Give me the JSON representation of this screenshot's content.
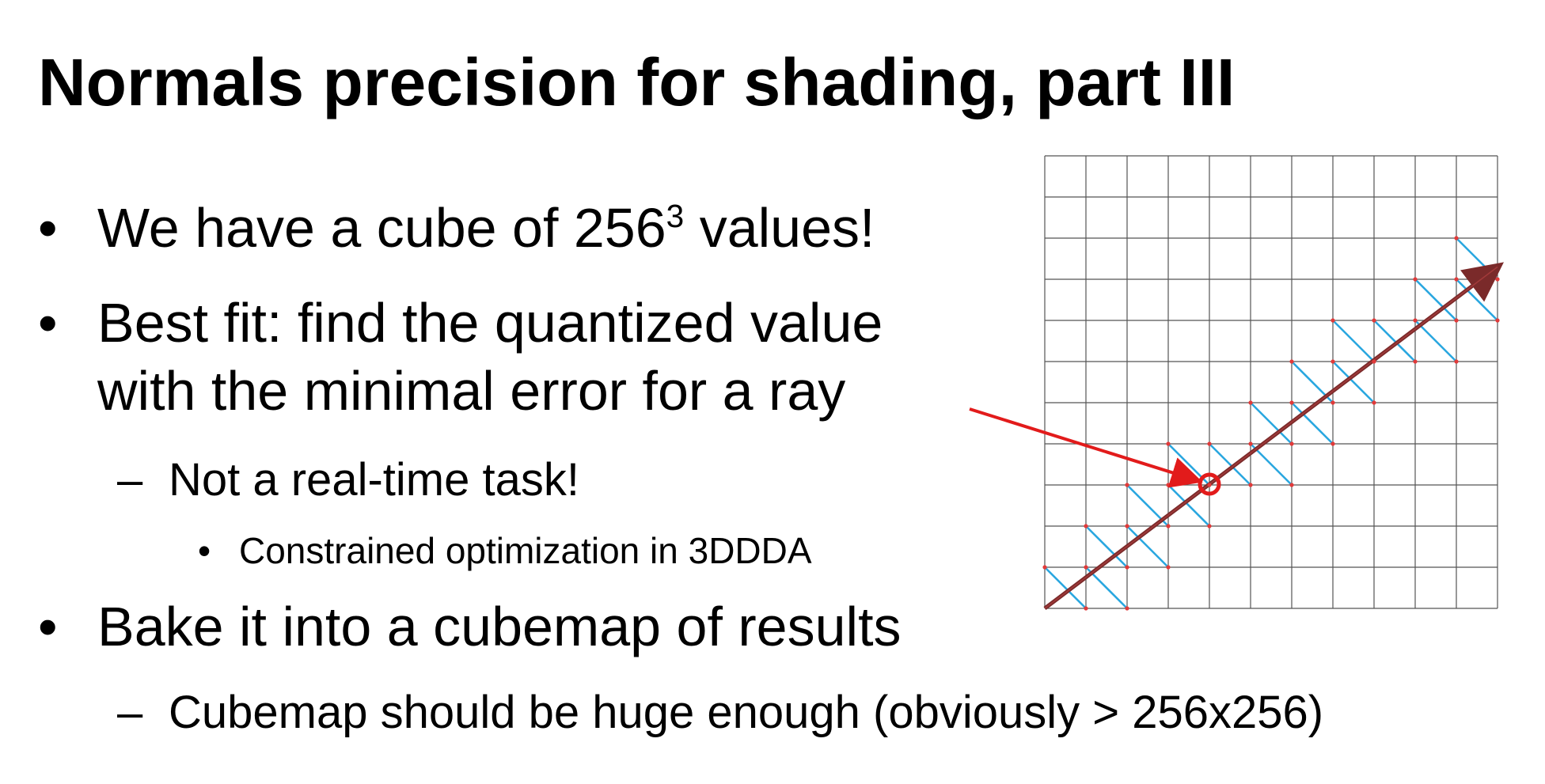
{
  "slide": {
    "title": "Normals precision for shading, part III"
  },
  "bullets": [
    {
      "level": 1,
      "marker": "•",
      "lines": [
        "We have a cube of 256"
      ],
      "superscript": "3",
      "suffix": " values!"
    },
    {
      "level": 1,
      "marker": "•",
      "lines": [
        "Best fit: find the quantized value",
        "with the minimal error for a ray"
      ]
    },
    {
      "level": 2,
      "marker": "–",
      "lines": [
        "Not a real-time task!"
      ]
    },
    {
      "level": 3,
      "marker": "•",
      "lines": [
        "Constrained optimization in 3DDDA"
      ]
    },
    {
      "level": 1,
      "marker": "•",
      "lines": [
        "Bake it into a cubemap of results"
      ]
    },
    {
      "level": 2,
      "marker": "–",
      "lines": [
        "Cubemap should be huge enough (obviously > 256x256)"
      ]
    }
  ],
  "diagram": {
    "grid_cells": 11,
    "colors": {
      "grid": "#555555",
      "ray": "#7a2a2a",
      "segments": "#2aa7e0",
      "points": "#e23a3a",
      "callout": "#e21b1b"
    },
    "highlight_cell": [
      4,
      3
    ]
  }
}
